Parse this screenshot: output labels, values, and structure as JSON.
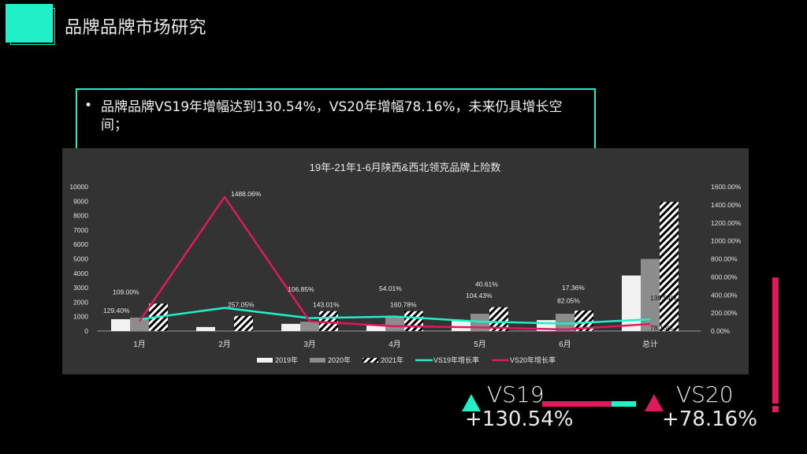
{
  "header": {
    "title": "品牌品牌市场研究"
  },
  "summary": {
    "bullet": "•",
    "text": "品牌品牌VS19年增幅达到130.54%，VS20年增幅78.16%，未来仍具增长空间；"
  },
  "kpis": {
    "vs19": {
      "label": "VS19",
      "value": "+130.54%",
      "color": "#1ff0c8"
    },
    "vs20": {
      "label": "VS20",
      "value": "+78.16%",
      "color": "#e0185f"
    }
  },
  "colors": {
    "accent_teal": "#1ff0c8",
    "accent_red": "#e0185f",
    "bar_2019": "#f2f2f2",
    "bar_2020": "#8c8c8c",
    "panel_bg": "#333333"
  },
  "chart_data": {
    "type": "bar",
    "title": "19年-21年1-6月陕西&西北领克品牌上险数",
    "categories": [
      "1月",
      "2月",
      "3月",
      "4月",
      "5月",
      "6月",
      "总计"
    ],
    "series": [
      {
        "name": "2019年",
        "type": "bar",
        "axis": "left",
        "values": [
          820,
          280,
          500,
          450,
          700,
          760,
          3850
        ]
      },
      {
        "name": "2020年",
        "type": "bar",
        "axis": "left",
        "values": [
          930,
          0,
          650,
          950,
          1200,
          1200,
          5000
        ]
      },
      {
        "name": "2021年",
        "type": "bar",
        "axis": "left",
        "pattern": "hatched",
        "values": [
          1900,
          1050,
          1380,
          1380,
          1650,
          1420,
          8950
        ]
      },
      {
        "name": "VS19年增长率",
        "type": "line",
        "axis": "right",
        "color": "#1ff0c8",
        "values": [
          129.4,
          257.05,
          143.01,
          160.78,
          104.43,
          82.05,
          130.54
        ],
        "labels": [
          "129.40%",
          "257.05%",
          "143.01%",
          "160.78%",
          "104.43%",
          "82.05%",
          "130.54%"
        ]
      },
      {
        "name": "VS20年增长率",
        "type": "line",
        "axis": "right",
        "color": "#e0185f",
        "values": [
          109.0,
          1488.06,
          106.85,
          54.01,
          40.61,
          17.36,
          78.16
        ],
        "labels": [
          "109.00%",
          "1488.06%",
          "106.85%",
          "54.01%",
          "40.61%",
          "17.36%",
          "78.16%"
        ]
      }
    ],
    "y_left": {
      "min": 0,
      "max": 10000,
      "ticks": [
        "0",
        "1000",
        "2000",
        "3000",
        "4000",
        "5000",
        "6000",
        "7000",
        "8000",
        "9000",
        "10000"
      ]
    },
    "y_right": {
      "min": 0,
      "max": 1600,
      "ticks": [
        "0.00%",
        "200.00%",
        "400.00%",
        "600.00%",
        "800.00%",
        "1000.00%",
        "1200.00%",
        "1400.00%",
        "1600.00%"
      ]
    },
    "legend": [
      "2019年",
      "2020年",
      "2021年",
      "VS19年增长率",
      "VS20年增长率"
    ],
    "legend_position": "bottom",
    "grid": false
  }
}
